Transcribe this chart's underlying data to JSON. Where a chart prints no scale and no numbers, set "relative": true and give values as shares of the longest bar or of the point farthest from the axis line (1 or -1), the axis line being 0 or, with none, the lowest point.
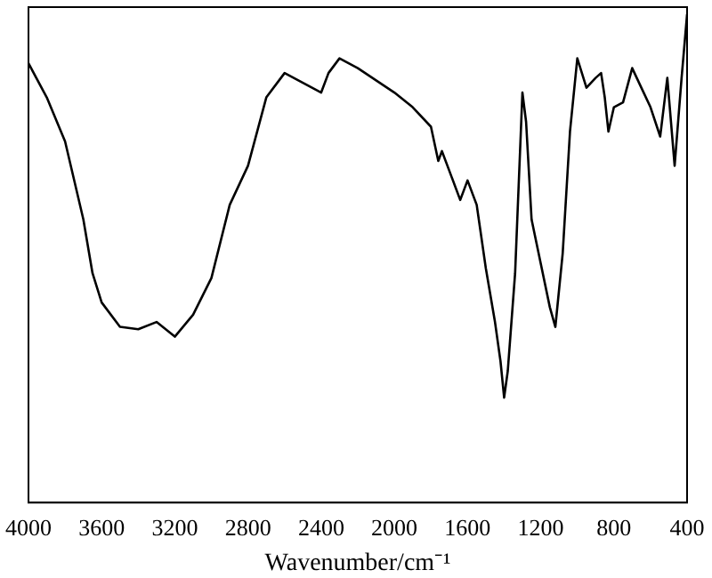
{
  "chart_data": {
    "type": "line",
    "xlabel": "Wavenumber/cm⁻¹",
    "relative": true,
    "tick_labels": "x",
    "grid": false,
    "legend": false,
    "marker": "none",
    "line_style": "solid",
    "xlim": [
      4000,
      400
    ],
    "xticks": [
      4000,
      3600,
      3200,
      2800,
      2400,
      2000,
      1600,
      1200,
      800,
      400
    ],
    "x": [
      4000,
      3900,
      3800,
      3700,
      3650,
      3600,
      3500,
      3400,
      3300,
      3200,
      3100,
      3000,
      2900,
      2800,
      2700,
      2600,
      2500,
      2400,
      2360,
      2300,
      2200,
      2000,
      1900,
      1800,
      1760,
      1740,
      1700,
      1640,
      1600,
      1550,
      1500,
      1450,
      1420,
      1400,
      1380,
      1340,
      1300,
      1280,
      1250,
      1200,
      1150,
      1120,
      1080,
      1040,
      1000,
      950,
      900,
      870,
      850,
      830,
      800,
      750,
      700,
      650,
      600,
      547,
      508,
      468,
      430,
      400
    ],
    "series": [
      {
        "color": "#000000",
        "values": [
          0.9,
          0.83,
          0.74,
          0.58,
          0.47,
          0.41,
          0.36,
          0.355,
          0.37,
          0.34,
          0.385,
          0.46,
          0.61,
          0.69,
          0.83,
          0.88,
          0.86,
          0.84,
          0.88,
          0.91,
          0.89,
          0.84,
          0.81,
          0.77,
          0.7,
          0.72,
          0.68,
          0.62,
          0.66,
          0.61,
          0.48,
          0.37,
          0.29,
          0.215,
          0.27,
          0.47,
          0.84,
          0.78,
          0.58,
          0.49,
          0.4,
          0.36,
          0.51,
          0.76,
          0.91,
          0.85,
          0.87,
          0.88,
          0.83,
          0.76,
          0.81,
          0.82,
          0.89,
          0.85,
          0.81,
          0.75,
          0.87,
          0.69,
          0.87,
          1
        ]
      }
    ]
  }
}
